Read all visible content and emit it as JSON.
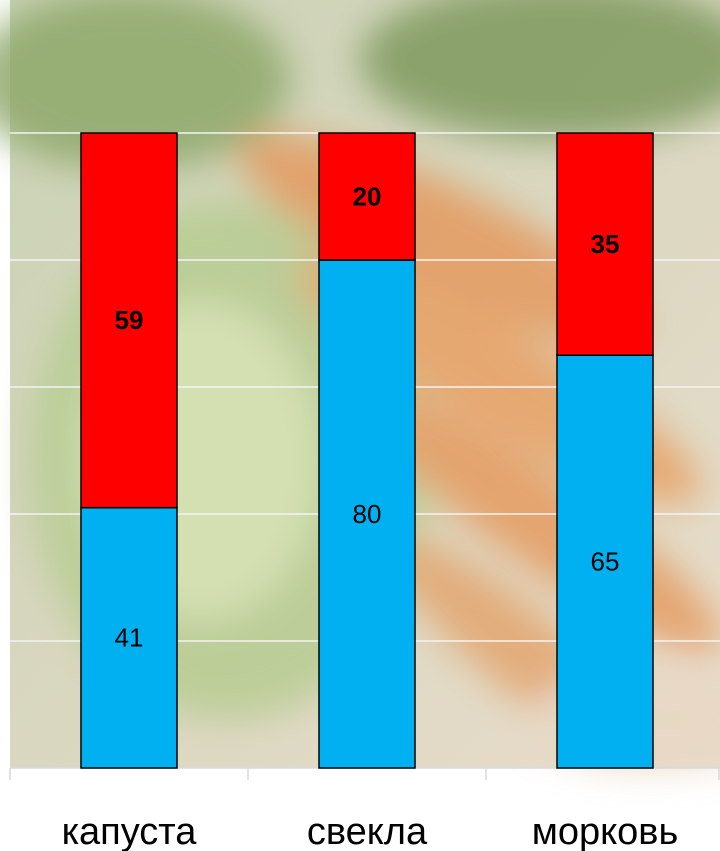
{
  "chart_data": {
    "type": "stacked_bar",
    "categories": [
      "капуста",
      "свекла",
      "морковь"
    ],
    "series": [
      {
        "color": "#00b0f0",
        "values": [
          41,
          80,
          65
        ]
      },
      {
        "color": "#ff0000",
        "values": [
          59,
          20,
          35
        ]
      }
    ],
    "ylim": [
      0,
      100
    ],
    "yticks": [
      0,
      20,
      40,
      60,
      80,
      100
    ],
    "grid": true
  }
}
